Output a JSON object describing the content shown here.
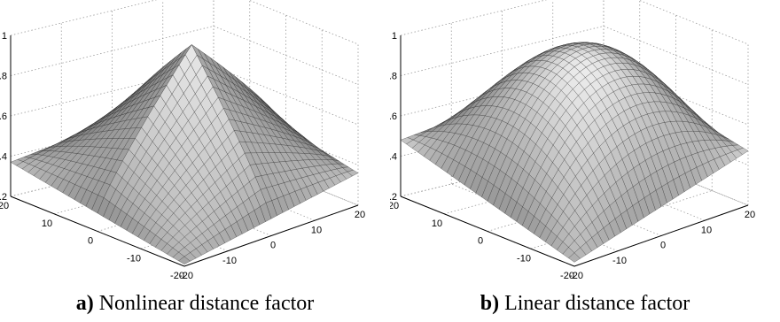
{
  "chart_data": [
    {
      "type": "surface",
      "caption_letter": "a)",
      "caption_text": " Nonlinear distance factor",
      "xlim": [
        -20,
        20
      ],
      "ylim": [
        -20,
        20
      ],
      "zlim": [
        0.2,
        1
      ],
      "x_ticks": [
        "-20",
        "-10",
        "0",
        "10",
        "20"
      ],
      "y_ticks": [
        "-20",
        "-10",
        "0",
        "10",
        "20"
      ],
      "z_ticks": [
        "0.2",
        "0.4",
        "0.6",
        "0.8",
        "1"
      ],
      "grid": true,
      "grid_points": 31,
      "surface": {
        "model": "nonlinear",
        "peak": 0.99,
        "corner_left": 0.37,
        "corner_right": 0.36,
        "corner_back": 0.52,
        "corner_front": 0.21
      }
    },
    {
      "type": "surface",
      "caption_letter": "b)",
      "caption_text": " Linear distance factor",
      "xlim": [
        -20,
        20
      ],
      "ylim": [
        -20,
        20
      ],
      "zlim": [
        0.2,
        1
      ],
      "x_ticks": [
        "-20",
        "-10",
        "0",
        "10",
        "20"
      ],
      "y_ticks": [
        "-20",
        "-10",
        "0",
        "10",
        "20"
      ],
      "z_ticks": [
        "0.2",
        "0.4",
        "0.6",
        "0.8",
        "1"
      ],
      "grid": true,
      "grid_points": 31,
      "surface": {
        "model": "linear",
        "peak": 0.94,
        "corner_left": 0.48,
        "corner_right": 0.47,
        "corner_back": 0.62,
        "corner_front": 0.22
      }
    }
  ]
}
